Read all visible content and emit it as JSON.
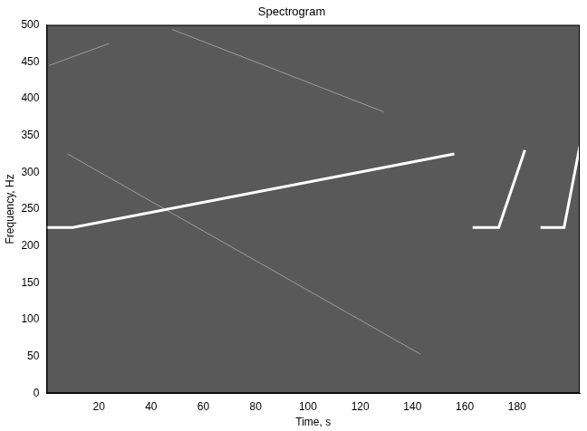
{
  "chart_data": {
    "type": "line",
    "title": "Spectrogram",
    "x_label": "Time, s",
    "y_label": "Frequency, Hz",
    "xlim": [
      0,
      204
    ],
    "xticks": [
      20,
      40,
      60,
      80,
      100,
      120,
      140,
      160,
      180
    ],
    "ylim": [
      0,
      500
    ],
    "yticks": [
      0,
      50,
      100,
      150,
      200,
      250,
      300,
      350,
      400,
      450,
      500
    ],
    "grid": false,
    "series": [
      {
        "color": "#ffffff",
        "x": [
          0,
          10,
          156
        ],
        "values": [
          225,
          225,
          325
        ]
      },
      {
        "color": "#ffffff",
        "x": [
          163,
          173,
          183
        ],
        "values": [
          225,
          225,
          330
        ]
      },
      {
        "color": "#ffffff",
        "x": [
          189,
          198,
          204
        ],
        "values": [
          225,
          225,
          335
        ]
      },
      {
        "color": "#9c9c9c",
        "x": [
          8,
          143
        ],
        "values": [
          325,
          53
        ]
      },
      {
        "color": "#9c9c9c",
        "x": [
          48,
          129
        ],
        "values": [
          494,
          382
        ]
      },
      {
        "color": "#9c9c9c",
        "x": [
          1,
          24
        ],
        "values": [
          445,
          475
        ]
      }
    ]
  }
}
